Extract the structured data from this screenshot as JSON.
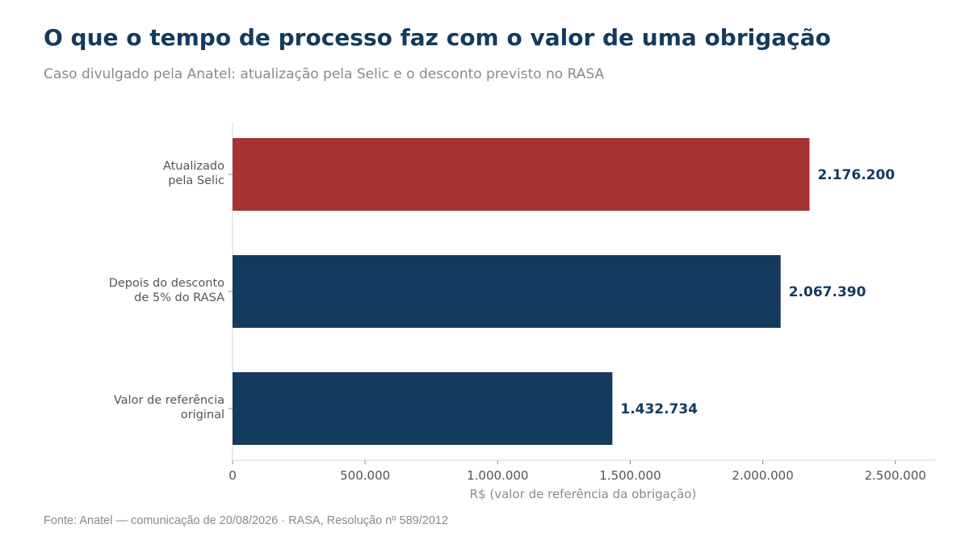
{
  "chart_data": {
    "type": "bar",
    "orientation": "horizontal",
    "title": "O que o tempo de processo faz com o valor de uma obrigação",
    "subtitle": "Caso divulgado pela Anatel: atualização pela Selic e o desconto previsto no RASA",
    "xlabel": "R$ (valor de referência da obrigação)",
    "ylabel": "",
    "xlim": [
      0,
      2650000
    ],
    "xticks": [
      0,
      500000,
      1000000,
      1500000,
      2000000,
      2500000
    ],
    "xtick_labels": [
      "0",
      "500.000",
      "1.000.000",
      "1.500.000",
      "2.000.000",
      "2.500.000"
    ],
    "categories": [
      [
        "Atualizado",
        "pela Selic"
      ],
      [
        "Depois do desconto",
        "de 5% do RASA"
      ],
      [
        "Valor de referência",
        "original"
      ]
    ],
    "values": [
      2176200,
      2067390,
      1432734
    ],
    "value_labels": [
      "2.176.200",
      "2.067.390",
      "1.432.734"
    ],
    "colors": [
      "#a63231",
      "#143a5e",
      "#143a5e"
    ],
    "value_label_color": "#143a5e",
    "grid": false,
    "legend": "none"
  },
  "source": "Fonte: Anatel — comunicação de 20/08/2026 · RASA, Resolução nº 589/2012"
}
